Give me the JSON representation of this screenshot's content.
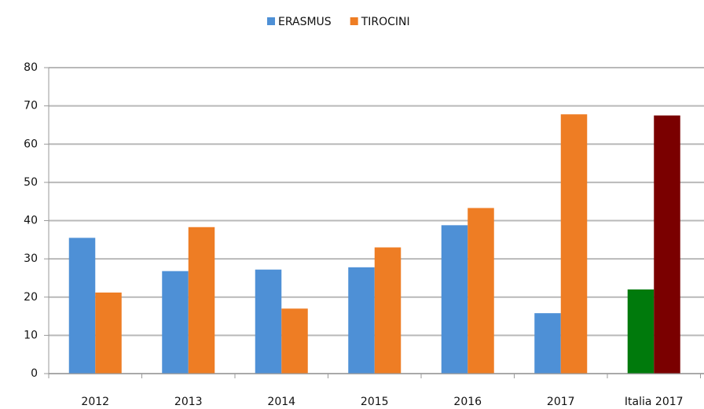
{
  "chart_data": {
    "type": "bar",
    "categories": [
      "2012",
      "2013",
      "2014",
      "2015",
      "2016",
      "2017",
      "Italia 2017"
    ],
    "series": [
      {
        "name": "ERASMUS",
        "color": "#4e90d6",
        "colors": [
          "#4e90d6",
          "#4e90d6",
          "#4e90d6",
          "#4e90d6",
          "#4e90d6",
          "#4e90d6",
          "#007a0c"
        ],
        "values": [
          35.5,
          26.8,
          27.2,
          27.8,
          38.8,
          15.8,
          22
        ]
      },
      {
        "name": "TIROCINI",
        "color": "#ee7d24",
        "colors": [
          "#ee7d24",
          "#ee7d24",
          "#ee7d24",
          "#ee7d24",
          "#ee7d24",
          "#ee7d24",
          "#7a0000"
        ],
        "values": [
          21.2,
          38.3,
          17,
          33,
          43.3,
          67.8,
          67.5
        ]
      }
    ],
    "ylim": [
      0,
      80
    ],
    "yticks": [
      0,
      10,
      20,
      30,
      40,
      50,
      60,
      70,
      80
    ],
    "grid": true,
    "legend": "top"
  }
}
